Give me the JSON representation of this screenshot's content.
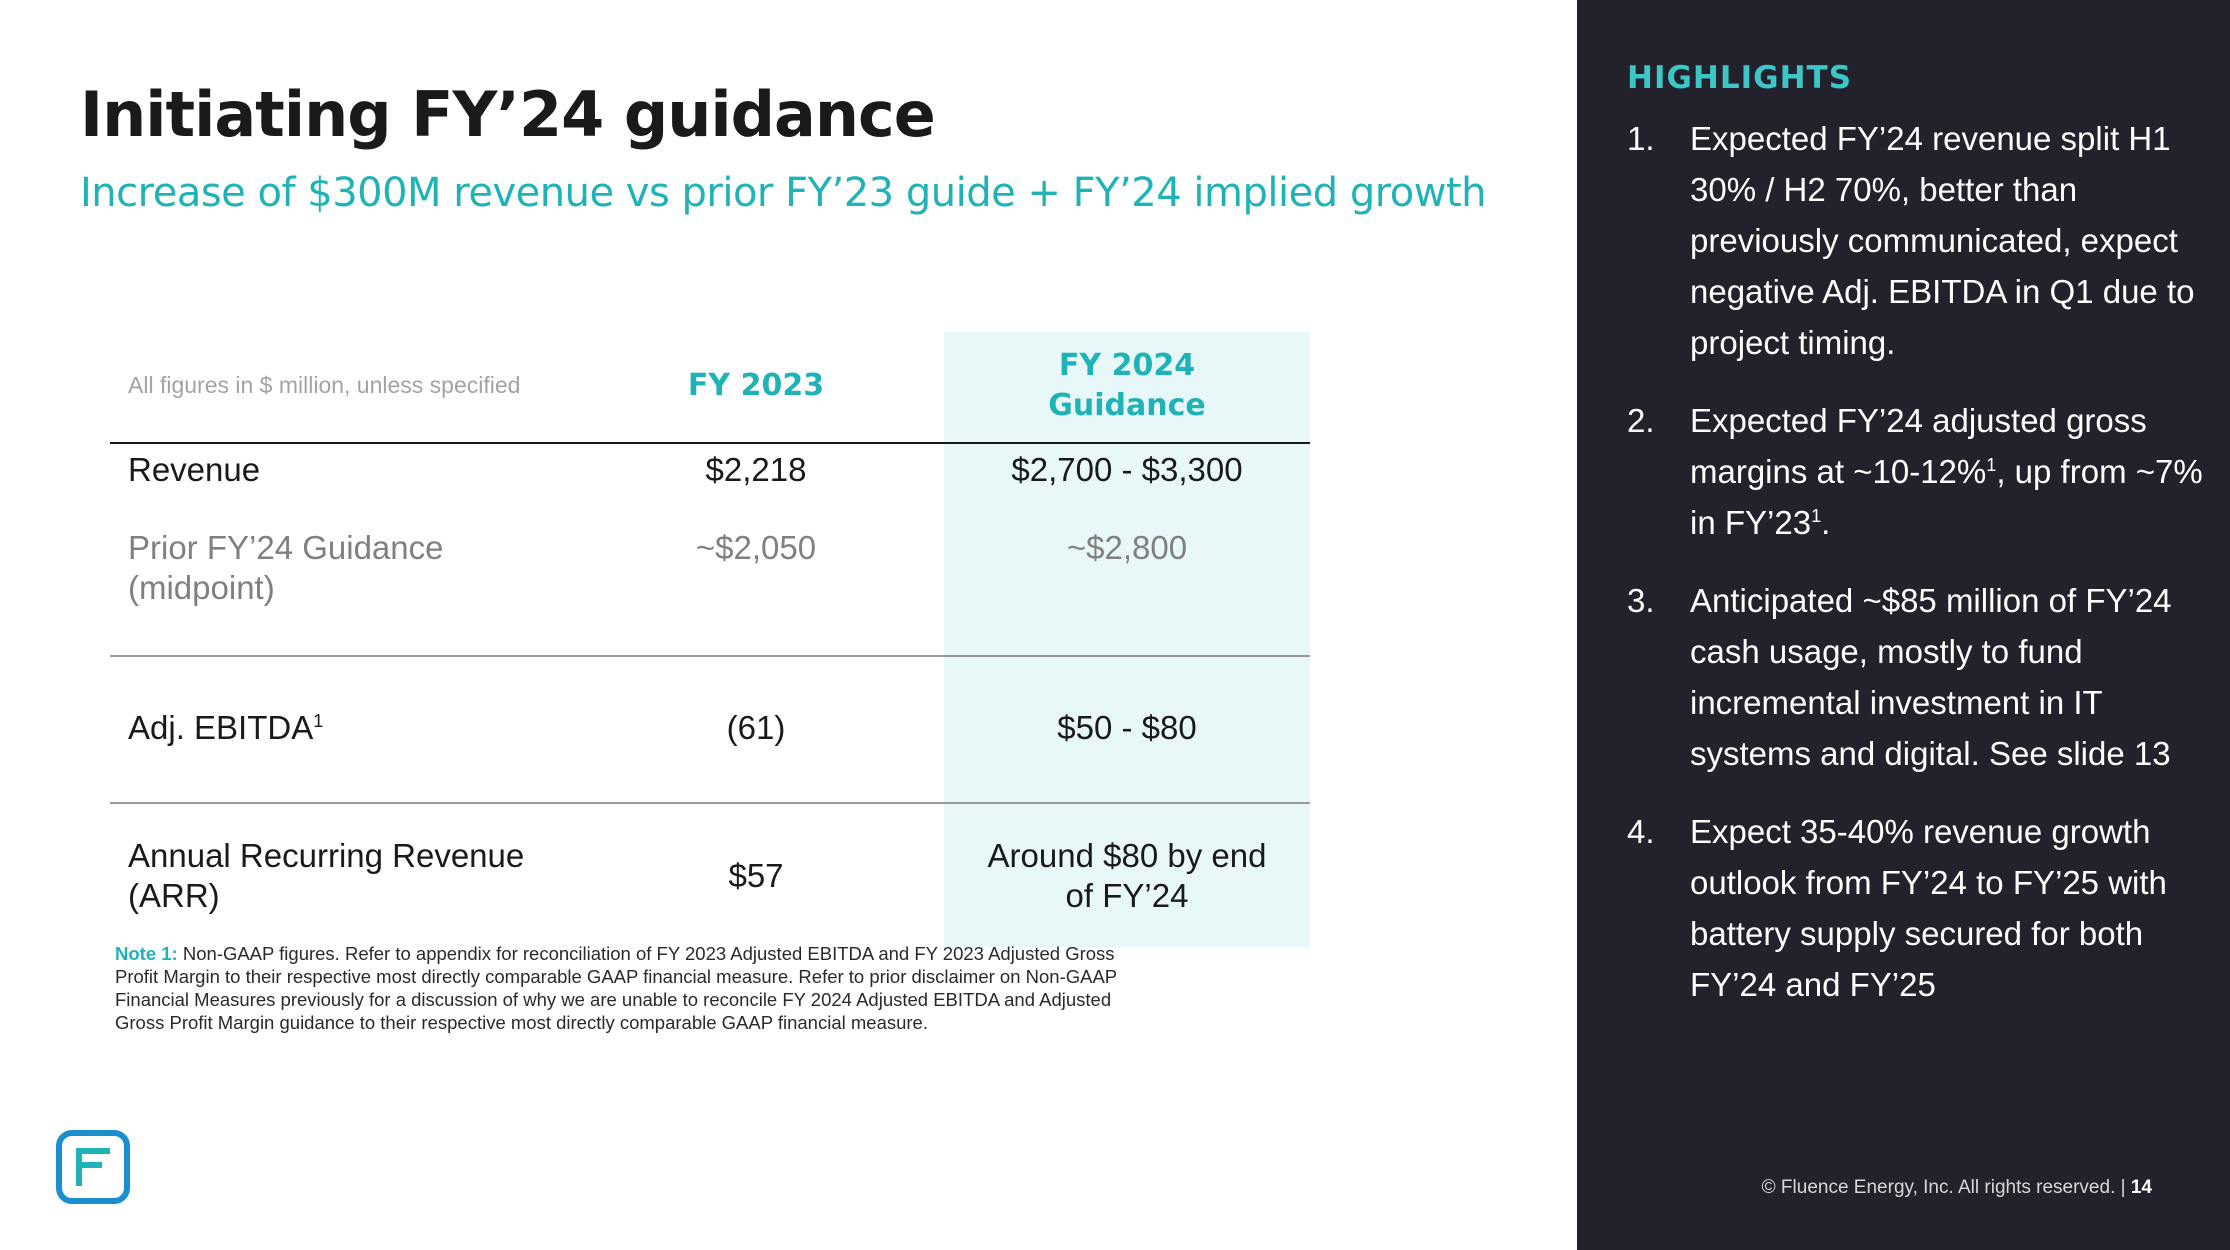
{
  "slide": {
    "title": "Initiating FY’24 guidance",
    "subtitle": "Increase of $300M revenue vs prior FY’23 guide + FY’24 implied growth"
  },
  "table": {
    "note_header": "All figures in $ million, unless specified",
    "col_fy2023": "FY 2023",
    "col_fy2024_line1": "FY 2024",
    "col_fy2024_line2": "Guidance",
    "rows": [
      {
        "label": "Revenue",
        "fy2023": "$2,218",
        "fy2024": "$2,700 - $3,300"
      },
      {
        "label_line1": "Prior FY’24 Guidance",
        "label_line2": "(midpoint)",
        "fy2023": "~$2,050",
        "fy2024": "~$2,800"
      },
      {
        "label": "Adj. EBITDA",
        "label_sup": "1",
        "fy2023": "(61)",
        "fy2024": "$50 - $80"
      },
      {
        "label_line1": "Annual Recurring Revenue",
        "label_line2": "(ARR)",
        "fy2023": "$57",
        "fy2024_line1": "Around $80 by end",
        "fy2024_line2": "of FY’24"
      }
    ]
  },
  "note": {
    "label": "Note 1:",
    "text": " Non-GAAP figures. Refer to appendix for reconciliation of FY 2023 Adjusted EBITDA and FY 2023 Adjusted Gross Profit Margin to their respective most directly comparable GAAP financial measure. Refer to prior disclaimer on Non-GAAP Financial Measures previously for a discussion of why we are unable to reconcile FY 2024 Adjusted EBITDA and Adjusted Gross Profit Margin guidance to their respective most directly comparable GAAP financial measure."
  },
  "highlights": {
    "title": "HIGHLIGHTS",
    "items": [
      {
        "num": "1.",
        "text": "Expected FY’24 revenue split H1 30% / H2 70%, better than previously communicated,  expect negative Adj. EBITDA in Q1 due to project timing."
      },
      {
        "num": "2.",
        "text_a": "Expected FY’24 adjusted gross margins at ~10-12%",
        "sup_a": "1",
        "text_b": ", up from ~7% in FY’23",
        "sup_b": "1",
        "text_c": "."
      },
      {
        "num": "3.",
        "text": "Anticipated ~$85 million of FY’24 cash usage, mostly to fund incremental investment in IT systems and digital. See slide 13"
      },
      {
        "num": "4.",
        "text": "Expect 35-40% revenue growth outlook from FY’24 to FY’25 with battery supply secured for both FY’24 and FY’25"
      }
    ]
  },
  "footer": {
    "copyright": "© Fluence Energy, Inc. All rights reserved.",
    "separator": " | ",
    "page": "14"
  },
  "colors": {
    "accent": "#1fb3b8",
    "highlight_accent": "#3dc6c6",
    "sidebar_bg": "#23212b",
    "guidance_bg": "#e8f8f8"
  }
}
